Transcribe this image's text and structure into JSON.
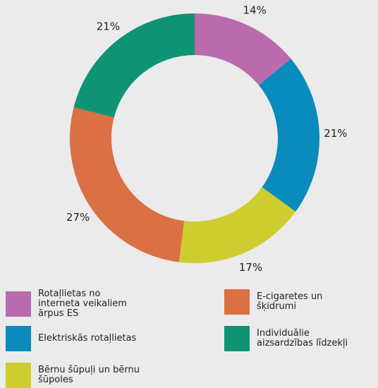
{
  "chart_data": {
    "type": "pie",
    "categories": [
      "Rotaļlietas no interneta veikaliem ārpus ES",
      "Elektriskās rotaļlietas",
      "Bērnu šūpuļi un bērnu šūpoles",
      "E-cigaretes un šķidrumi",
      "Individuālie aizsardzības līdzekļi"
    ],
    "values": [
      14,
      21,
      17,
      27,
      21
    ],
    "value_labels": [
      "14%",
      "21%",
      "17%",
      "27%",
      "21%"
    ],
    "colors": [
      "#b96bae",
      "#0a8bbd",
      "#cdcd30",
      "#da7043",
      "#0e9474"
    ],
    "donut": true
  }
}
